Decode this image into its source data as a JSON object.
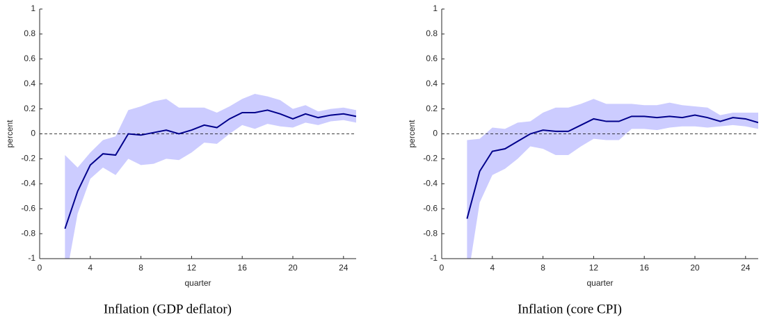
{
  "chart_data": [
    {
      "type": "line",
      "title": "Inflation (GDP deflator)",
      "xlabel": "quarter",
      "ylabel": "percent",
      "x": [
        2,
        3,
        4,
        5,
        6,
        7,
        8,
        9,
        10,
        11,
        12,
        13,
        14,
        15,
        16,
        17,
        18,
        19,
        20,
        21,
        22,
        23,
        24,
        25
      ],
      "values": [
        -0.76,
        -0.46,
        -0.25,
        -0.16,
        -0.17,
        0.0,
        -0.01,
        0.01,
        0.03,
        0.0,
        0.03,
        0.07,
        0.05,
        0.12,
        0.17,
        0.17,
        0.19,
        0.16,
        0.12,
        0.16,
        0.13,
        0.15,
        0.16,
        0.14
      ],
      "upper": [
        -0.17,
        -0.27,
        -0.15,
        -0.05,
        -0.02,
        0.19,
        0.22,
        0.26,
        0.28,
        0.21,
        0.21,
        0.21,
        0.17,
        0.22,
        0.28,
        0.32,
        0.3,
        0.27,
        0.2,
        0.23,
        0.18,
        0.2,
        0.21,
        0.19
      ],
      "lower": [
        -1.2,
        -0.64,
        -0.36,
        -0.27,
        -0.33,
        -0.2,
        -0.25,
        -0.24,
        -0.2,
        -0.21,
        -0.15,
        -0.07,
        -0.08,
        0.0,
        0.07,
        0.04,
        0.08,
        0.06,
        0.05,
        0.09,
        0.07,
        0.1,
        0.11,
        0.09
      ],
      "color": "#00008b",
      "band_color": "#ccccff",
      "reference_line": 0,
      "xlim": [
        0,
        25
      ],
      "ylim": [
        -1,
        1
      ],
      "xticks": [
        0,
        4,
        8,
        12,
        16,
        20,
        24
      ],
      "yticks": [
        -1,
        -0.8,
        -0.6,
        -0.4,
        -0.2,
        0,
        0.2,
        0.4,
        0.6,
        0.8,
        1
      ]
    },
    {
      "type": "line",
      "title": "Inflation (core CPI)",
      "xlabel": "quarter",
      "ylabel": "percent",
      "x": [
        2,
        3,
        4,
        5,
        6,
        7,
        8,
        9,
        10,
        11,
        12,
        13,
        14,
        15,
        16,
        17,
        18,
        19,
        20,
        21,
        22,
        23,
        24,
        25
      ],
      "values": [
        -0.68,
        -0.3,
        -0.14,
        -0.12,
        -0.06,
        0.0,
        0.03,
        0.02,
        0.02,
        0.07,
        0.12,
        0.1,
        0.1,
        0.14,
        0.14,
        0.13,
        0.14,
        0.13,
        0.15,
        0.13,
        0.1,
        0.13,
        0.12,
        0.09
      ],
      "upper": [
        -0.05,
        -0.04,
        0.05,
        0.04,
        0.09,
        0.1,
        0.17,
        0.21,
        0.21,
        0.24,
        0.28,
        0.24,
        0.24,
        0.24,
        0.23,
        0.23,
        0.25,
        0.23,
        0.22,
        0.21,
        0.15,
        0.17,
        0.17,
        0.17
      ],
      "lower": [
        -1.2,
        -0.55,
        -0.33,
        -0.28,
        -0.2,
        -0.1,
        -0.12,
        -0.17,
        -0.17,
        -0.1,
        -0.04,
        -0.05,
        -0.05,
        0.04,
        0.04,
        0.03,
        0.05,
        0.06,
        0.06,
        0.05,
        0.06,
        0.07,
        0.06,
        0.04
      ],
      "color": "#00008b",
      "band_color": "#ccccff",
      "reference_line": 0,
      "xlim": [
        0,
        25
      ],
      "ylim": [
        -1,
        1
      ],
      "xticks": [
        0,
        4,
        8,
        12,
        16,
        20,
        24
      ],
      "yticks": [
        -1,
        -0.8,
        -0.6,
        -0.4,
        -0.2,
        0,
        0.2,
        0.4,
        0.6,
        0.8,
        1
      ]
    }
  ]
}
